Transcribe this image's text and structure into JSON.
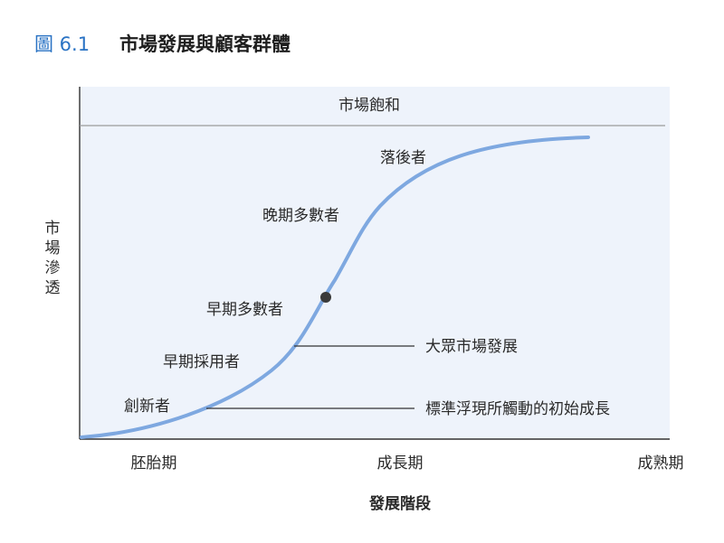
{
  "figure": {
    "number": "圖 6.1",
    "title": "市場發展與顧客群體"
  },
  "diagram": {
    "saturation_label": "市場飽和",
    "y_axis_label": [
      "市",
      "場",
      "滲",
      "透"
    ],
    "x_axis_label": "發展階段",
    "stages": [
      "胚胎期",
      "成長期",
      "成熟期"
    ],
    "groups": {
      "innovators": "創新者",
      "early_adopters": "早期採用者",
      "early_majority": "早期多數者",
      "late_majority": "晚期多數者",
      "laggards": "落後者"
    },
    "callouts": {
      "mass_market": "大眾市場發展",
      "standard_triggered": "標準浮現所觸動的初始成長"
    },
    "colors": {
      "curve": "#7ea8e0",
      "panel": "#eef3fb",
      "accent": "#2a73c4",
      "marker": "#3a3a3a"
    }
  }
}
